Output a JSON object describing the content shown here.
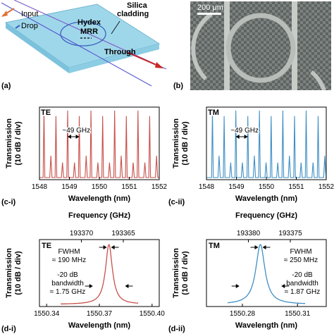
{
  "panel_a": {
    "tag": "(a)",
    "labels": {
      "input": "Input",
      "drop": "Drop",
      "silica1": "Silica",
      "silica2": "cladding",
      "hydex": "Hydex",
      "mrr": "MRR",
      "through": "Through"
    }
  },
  "panel_b": {
    "tag": "(b)",
    "scalebar": "200 μm"
  },
  "colors": {
    "te": "#c8504a",
    "tm": "#3f8fc4",
    "chip": "#9fd7ea",
    "chip_edge": "#6fb5cf",
    "input_arrow": "#e0733a",
    "through_arrow": "#c82828",
    "drop_arrow": "#3a62c2",
    "axis": "#000000"
  },
  "chart_data": [
    {
      "id": "c-i",
      "type": "line",
      "tag": "(c-i)",
      "mode_label": "TE",
      "annotation": "~49 GHz",
      "xlabel": "Wavelength (nm)",
      "ylabel_line1": "Transmission",
      "ylabel_line2": "(10 dB / div)",
      "xlim": [
        1548,
        1552
      ],
      "x_ticks": [
        "1548",
        "1549",
        "1550",
        "1551",
        "1552"
      ],
      "series": [
        {
          "color": "#c8504a",
          "main_peaks": [
            1548.15,
            1548.55,
            1548.94,
            1549.33,
            1549.72,
            1550.11,
            1550.51,
            1550.9,
            1551.29,
            1551.68
          ],
          "side_peaks": [
            1548.38,
            1548.77,
            1549.17,
            1549.56,
            1549.95,
            1550.34,
            1550.73,
            1551.13,
            1551.52,
            1551.91
          ]
        }
      ]
    },
    {
      "id": "c-ii",
      "type": "line",
      "tag": "(c-ii)",
      "mode_label": "TM",
      "annotation": "~49 GHz",
      "xlabel": "Wavelength (nm)",
      "ylabel_line1": "Transmission",
      "ylabel_line2": "(10 dB / div)",
      "xlim": [
        1548,
        1552
      ],
      "x_ticks": [
        "1548",
        "1549",
        "1550",
        "1551",
        "1552"
      ],
      "series": [
        {
          "color": "#3f8fc4",
          "main_peaks": [
            1548.2,
            1548.59,
            1548.98,
            1549.38,
            1549.77,
            1550.16,
            1550.55,
            1550.94,
            1551.33,
            1551.73
          ],
          "side_peaks": [
            1548.42,
            1548.81,
            1549.2,
            1549.6,
            1549.99,
            1550.38,
            1550.77,
            1551.16,
            1551.56,
            1551.95
          ]
        }
      ]
    },
    {
      "id": "d-i",
      "type": "line",
      "tag": "(d-i)",
      "mode_label": "TE",
      "top_axis_label": "Frequency (GHz)",
      "top_ticks": [
        "193370",
        "193365"
      ],
      "xlabel": "Wavelength (nm)",
      "ylabel_line1": "Transmission",
      "ylabel_line2": "(10 dB / div)",
      "x_ticks": [
        "1550.34",
        "1550.37",
        "1550.40"
      ],
      "fwhm_label": "FWHM",
      "fwhm_value": "≈ 190 MHz",
      "bw_label1": "-20 dB",
      "bw_label2": "bandwidth",
      "bw_value": "≈ 1.75 GHz",
      "resonance": {
        "center": 1550.381,
        "fwhm_mhz": 190,
        "bw20_ghz": 1.75
      },
      "series": [
        {
          "color": "#c8504a"
        }
      ]
    },
    {
      "id": "d-ii",
      "type": "line",
      "tag": "(d-ii)",
      "mode_label": "TM",
      "top_axis_label": "Frequency (GHz)",
      "top_ticks": [
        "193380",
        "193375"
      ],
      "xlabel": "Wavelength (nm)",
      "ylabel_line1": "Transmission",
      "ylabel_line2": "(10 dB / div)",
      "x_ticks": [
        "1550.28",
        "1550.31"
      ],
      "fwhm_label": "FWHM",
      "fwhm_value": "≈ 250 MHz",
      "bw_label1": "-20 dB",
      "bw_label2": "bandwidth",
      "bw_value": "≈ 1.87 GHz",
      "resonance": {
        "center": 1550.289,
        "fwhm_mhz": 250,
        "bw20_ghz": 1.87
      },
      "series": [
        {
          "color": "#3f8fc4"
        }
      ]
    }
  ]
}
